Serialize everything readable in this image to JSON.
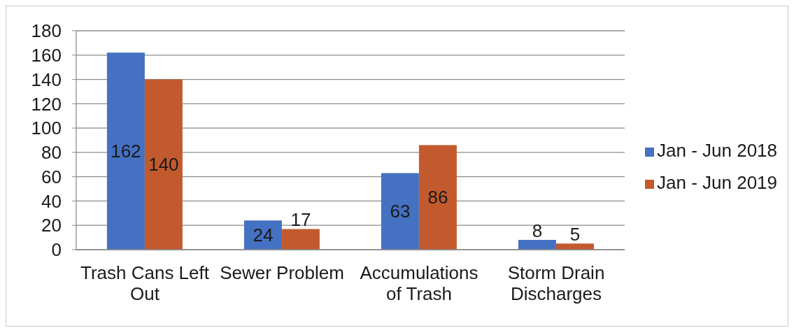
{
  "chart_data": {
    "type": "bar",
    "categories": [
      "Trash Cans Left Out",
      "Sewer Problem",
      "Accumulations of Trash",
      "Storm Drain Discharges"
    ],
    "series": [
      {
        "name": "Jan - Jun 2018",
        "color": "#4571c3",
        "values": [
          162,
          24,
          63,
          8
        ]
      },
      {
        "name": "Jan - Jun 2019",
        "color": "#c25a2e",
        "values": [
          140,
          17,
          86,
          5
        ]
      }
    ],
    "ylim": [
      0,
      180
    ],
    "yticks": [
      0,
      20,
      40,
      60,
      80,
      100,
      120,
      140,
      160,
      180
    ],
    "grid": "y",
    "legend": "right",
    "data_labels": true
  }
}
